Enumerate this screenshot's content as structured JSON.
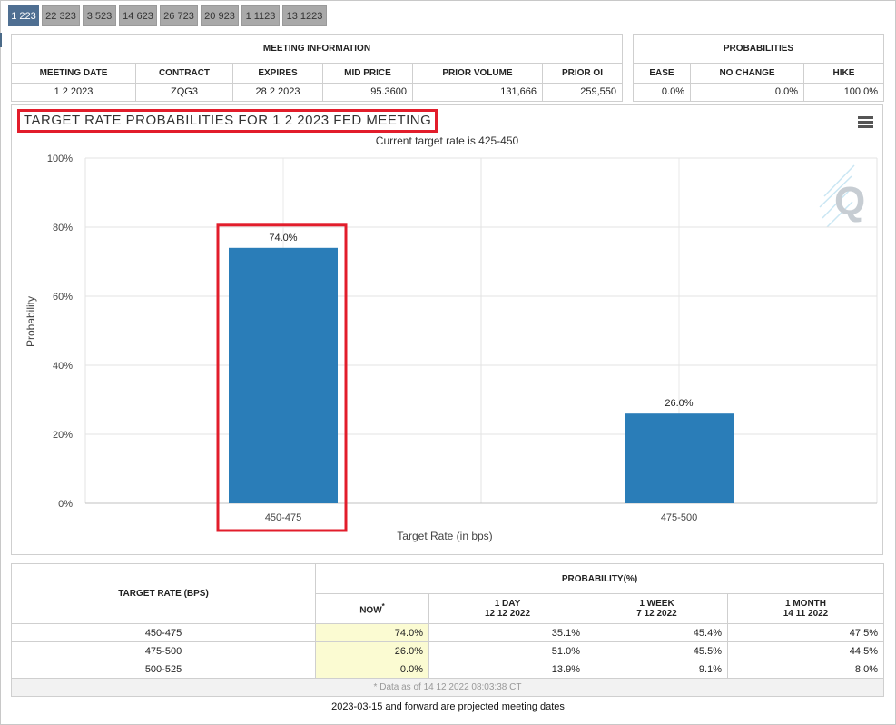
{
  "tabs": [
    "1 223",
    "22 323",
    "3 523",
    "14 623",
    "26 723",
    "20 923",
    "1 1123",
    "13 1223"
  ],
  "active_tab": 0,
  "meeting_info": {
    "title": "MEETING INFORMATION",
    "headers": [
      "MEETING DATE",
      "CONTRACT",
      "EXPIRES",
      "MID PRICE",
      "PRIOR VOLUME",
      "PRIOR OI"
    ],
    "values": [
      "1 2 2023",
      "ZQG3",
      "28 2 2023",
      "95.3600",
      "131,666",
      "259,550"
    ]
  },
  "probabilities": {
    "title": "PROBABILITIES",
    "headers": [
      "EASE",
      "NO CHANGE",
      "HIKE"
    ],
    "values": [
      "0.0%",
      "0.0%",
      "100.0%"
    ]
  },
  "chart_title": "TARGET RATE PROBABILITIES FOR 1 2 2023 FED MEETING",
  "chart_data": {
    "type": "bar",
    "title": "TARGET RATE PROBABILITIES FOR 1 2 2023 FED MEETING",
    "subtitle": "Current target rate is 425-450",
    "categories": [
      "450-475",
      "475-500"
    ],
    "values": [
      74.0,
      26.0
    ],
    "data_labels": [
      "74.0%",
      "26.0%"
    ],
    "xlabel": "Target Rate (in bps)",
    "ylabel": "Probability",
    "ylim": [
      0,
      100
    ],
    "yticks": [
      "0%",
      "20%",
      "40%",
      "60%",
      "80%",
      "100%"
    ],
    "grid": true,
    "bar_color": "#2a7db8",
    "highlight_color": "#e21d2b"
  },
  "prob_table": {
    "rate_header": "TARGET RATE (BPS)",
    "group_header": "PROBABILITY(%)",
    "columns": [
      {
        "label": "NOW",
        "sup": "*",
        "date": ""
      },
      {
        "label": "1 DAY",
        "date": "12 12 2022"
      },
      {
        "label": "1 WEEK",
        "date": "7 12 2022"
      },
      {
        "label": "1 MONTH",
        "date": "14 11 2022"
      }
    ],
    "rows": [
      {
        "rate": "450-475",
        "values": [
          "74.0%",
          "35.1%",
          "45.4%",
          "47.5%"
        ]
      },
      {
        "rate": "475-500",
        "values": [
          "26.0%",
          "51.0%",
          "45.5%",
          "44.5%"
        ]
      },
      {
        "rate": "500-525",
        "values": [
          "0.0%",
          "13.9%",
          "9.1%",
          "8.0%"
        ]
      }
    ],
    "data_as_of": "* Data as of 14 12 2022 08:03:38 CT"
  },
  "footer_note": "2023-03-15 and forward are projected meeting dates"
}
